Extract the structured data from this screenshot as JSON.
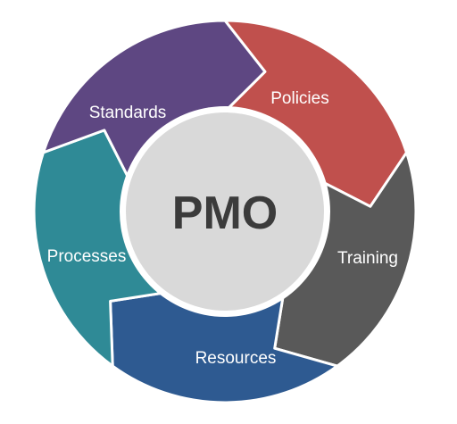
{
  "center": {
    "label": "PMO",
    "color": "#d9d9d9",
    "text_color": "#3b3b3b"
  },
  "segments": [
    {
      "label": "Policies",
      "color": "#c0504d"
    },
    {
      "label": "Training",
      "color": "#595959"
    },
    {
      "label": "Resources",
      "color": "#2e5a91"
    },
    {
      "label": "Processes",
      "color": "#2f8a96"
    },
    {
      "label": "Standards",
      "color": "#5e4782"
    }
  ]
}
